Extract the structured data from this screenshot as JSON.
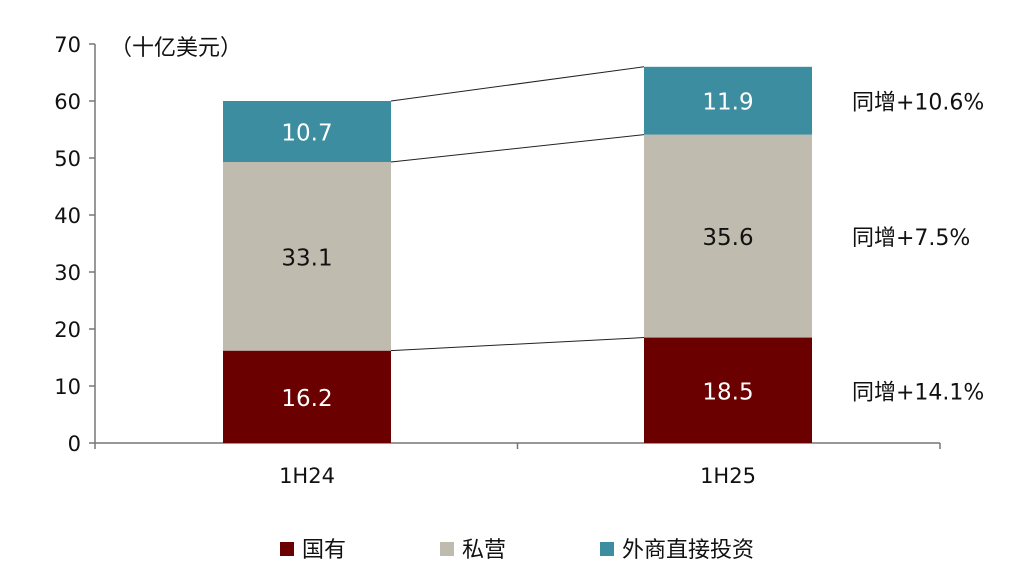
{
  "chart_data": {
    "type": "bar",
    "stacked": true,
    "unit_label": "（十亿美元）",
    "categories": [
      "1H24",
      "1H25"
    ],
    "series": [
      {
        "name": "国有",
        "values": [
          16.2,
          18.5
        ],
        "color": "#6b0000",
        "label_color": "#ffffff"
      },
      {
        "name": "私营",
        "values": [
          33.1,
          35.6
        ],
        "color": "#bfbcaf",
        "label_color": "#111111"
      },
      {
        "name": "外商直接投资",
        "values": [
          10.7,
          11.9
        ],
        "color": "#3d8da0",
        "label_color": "#ffffff"
      }
    ],
    "annotations": [
      "同增+14.1%",
      "同增+7.5%",
      "同增+10.6%"
    ],
    "ylim": [
      0,
      70
    ],
    "yticks": [
      0,
      10,
      20,
      30,
      40,
      50,
      60,
      70
    ],
    "grid": false,
    "legend_position": "bottom"
  }
}
